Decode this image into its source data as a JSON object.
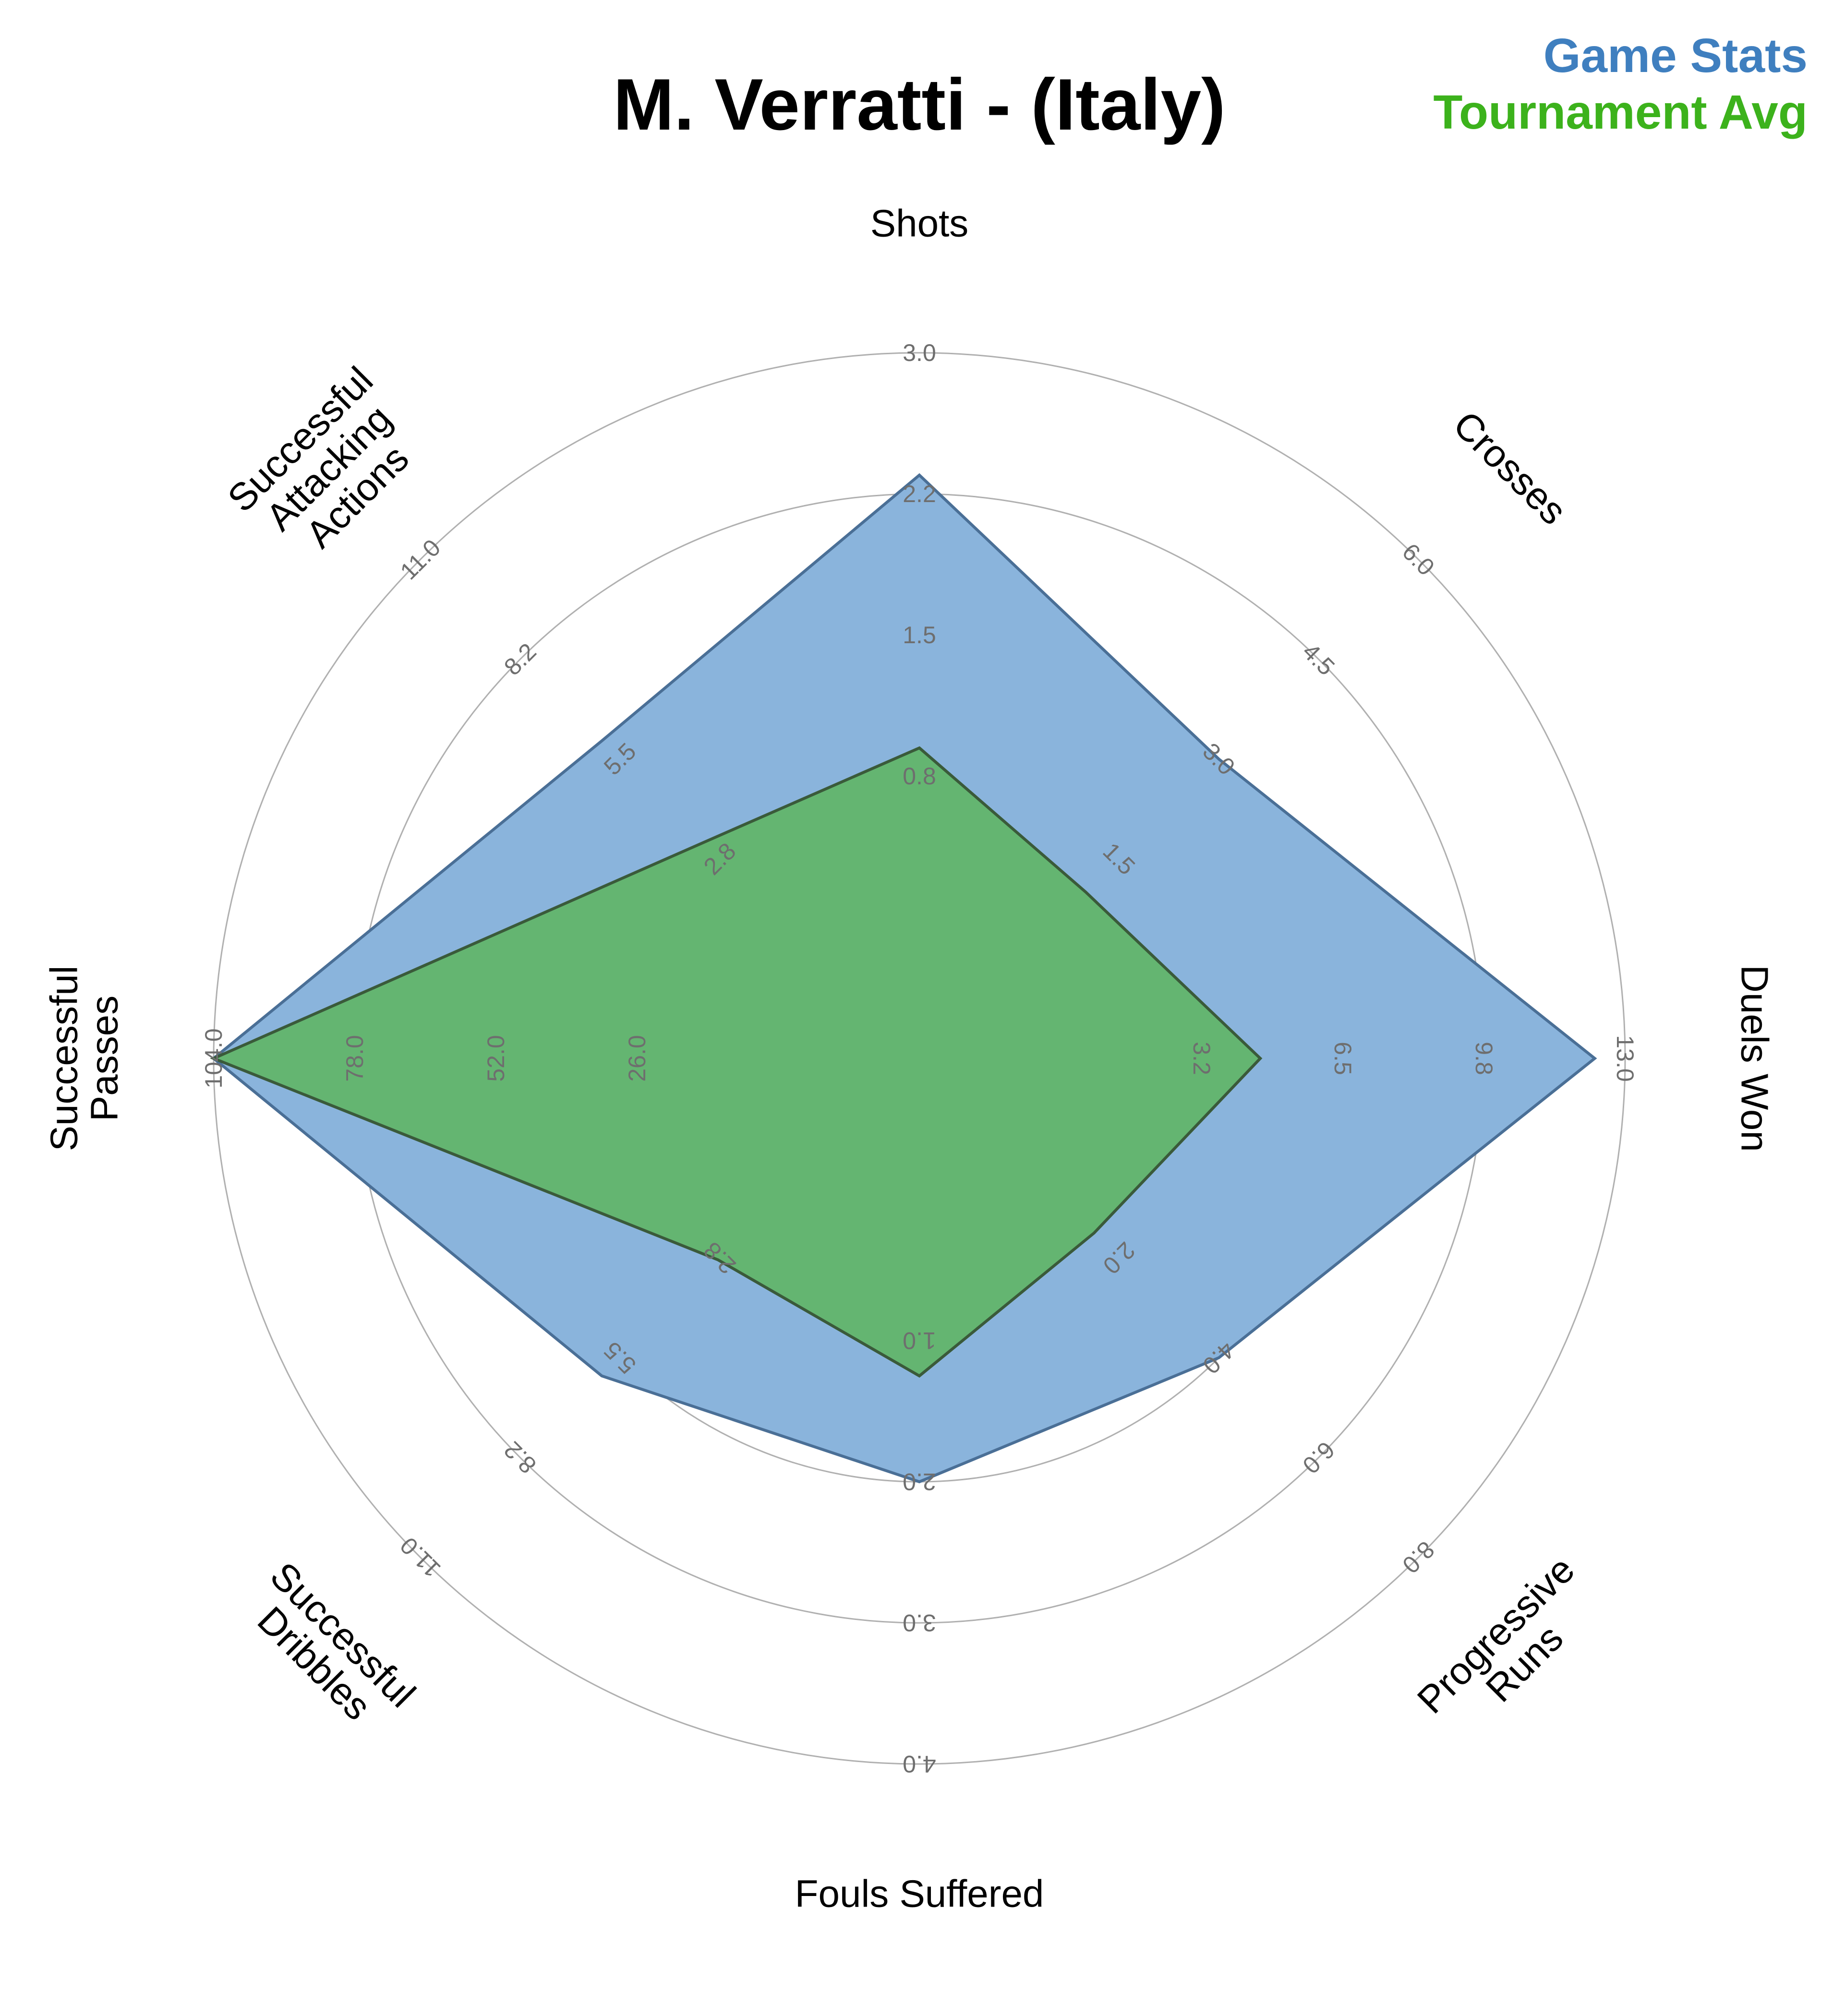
{
  "chart_data": {
    "type": "radar",
    "title": "M. Verratti - (Italy)",
    "legend": {
      "placement": "top-right",
      "entries": [
        {
          "label": "Game Stats",
          "color": "#3f7fbf"
        },
        {
          "label": "Tournament Avg",
          "color": "#3cb21c"
        }
      ]
    },
    "axes": [
      {
        "name": "Shots",
        "label_lines": [
          "Shots"
        ],
        "ticks": [
          "0.8",
          "1.5",
          "2.2",
          "3.0"
        ],
        "max": 3.0
      },
      {
        "name": "Crosses",
        "label_lines": [
          "Crosses"
        ],
        "ticks": [
          "1.5",
          "3.0",
          "4.5",
          "6.0"
        ],
        "max": 6.0
      },
      {
        "name": "Duels Won",
        "label_lines": [
          "Duels Won"
        ],
        "ticks": [
          "3.2",
          "6.5",
          "9.8",
          "13.0"
        ],
        "max": 13.0
      },
      {
        "name": "Progressive Runs",
        "label_lines": [
          "Progressive",
          "Runs"
        ],
        "ticks": [
          "2.0",
          "4.0",
          "6.0",
          "8.0"
        ],
        "max": 8.0
      },
      {
        "name": "Fouls Suffered",
        "label_lines": [
          "Fouls Suffered"
        ],
        "ticks": [
          "1.0",
          "2.0",
          "3.0",
          "4.0"
        ],
        "max": 4.0
      },
      {
        "name": "Successful Dribbles",
        "label_lines": [
          "Successful",
          "Dribbles"
        ],
        "ticks": [
          "2.8",
          "5.5",
          "8.2",
          "11.0"
        ],
        "max": 11.0
      },
      {
        "name": "Successful Passes",
        "label_lines": [
          "Successful",
          "Passes"
        ],
        "ticks": [
          "26.0",
          "52.0",
          "78.0",
          "104.0"
        ],
        "max": 104.0
      },
      {
        "name": "Successful Attacking Actions",
        "label_lines": [
          "Successful",
          "Attacking",
          "Actions"
        ],
        "ticks": [
          "2.8",
          "5.5",
          "8.2",
          "11.0"
        ],
        "max": 11.0
      }
    ],
    "series": [
      {
        "name": "Game Stats",
        "color": "#3f7fbf",
        "fill": "#8ab4dc",
        "stroke": "#4a6f96",
        "values": [
          2.35,
          3.0,
          12.3,
          4.0,
          2.0,
          6.0,
          104.0,
          6.0
        ]
      },
      {
        "name": "Tournament Avg",
        "color": "#3cb21c",
        "fill": "#63b56d",
        "stroke": "#3a5a3a",
        "values": [
          0.9,
          1.0,
          4.6,
          1.5,
          1.25,
          2.8,
          104.0,
          3.2
        ]
      }
    ],
    "grid": true,
    "rings": 5
  }
}
